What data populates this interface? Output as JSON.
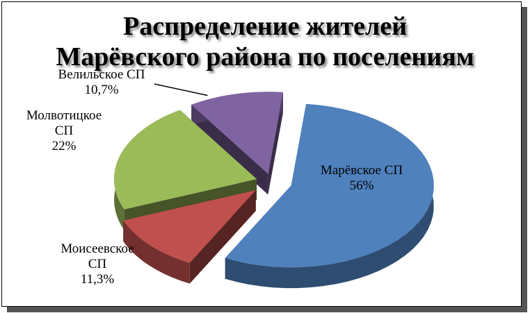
{
  "chart_data": {
    "type": "pie",
    "title_lines": [
      "Распределение жителей",
      "Марёвского района по поселениям"
    ],
    "slices": [
      {
        "label_lines": [
          "Марёвское СП"
        ],
        "value_text": "56%",
        "value": 56,
        "color": "#4f81bd"
      },
      {
        "label_lines": [
          "Моисеевское",
          "СП"
        ],
        "value_text": "11,3%",
        "value": 11.3,
        "color": "#c0504d"
      },
      {
        "label_lines": [
          "Молвотицкое",
          "СП"
        ],
        "value_text": "22%",
        "value": 22,
        "color": "#9bbb59"
      },
      {
        "label_lines": [
          "Велильское СП"
        ],
        "value_text": "10,7%",
        "value": 10.7,
        "color": "#8064a2"
      }
    ],
    "style": "3d-exploded"
  }
}
